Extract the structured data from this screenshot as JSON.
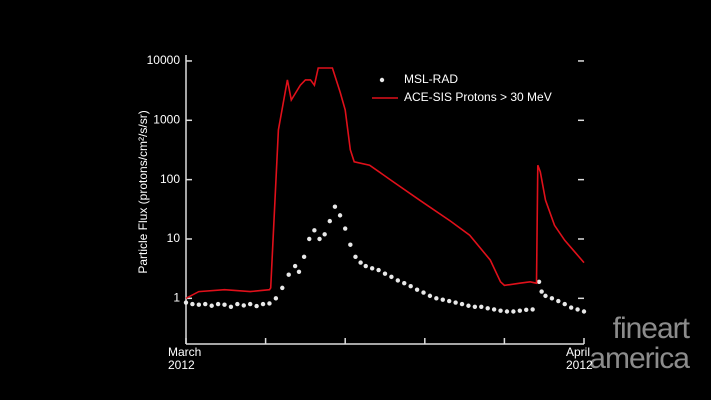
{
  "chart_data": {
    "type": "line",
    "y_label": "Particle Flux (protons/cm²/s/sr)",
    "log_y": true,
    "ylim": [
      0.17,
      12600
    ],
    "yticks": [
      1,
      10,
      100,
      1000,
      10000
    ],
    "xlim": [
      0,
      31
    ],
    "xticks": [
      {
        "value": 0,
        "label": "March\n2012"
      },
      {
        "value": 31,
        "label": "April\n2012"
      }
    ],
    "x_minor_ticks": [
      6.2,
      12.4,
      18.6,
      24.8
    ],
    "legend": "top-right",
    "series": [
      {
        "name": "MSL-RAD",
        "color": "#e8e8e8",
        "marker": "dot",
        "x": [
          0,
          0.5,
          1,
          1.5,
          2,
          2.5,
          3,
          3.5,
          4,
          4.5,
          5,
          5.5,
          6,
          6.5,
          7,
          7.5,
          8,
          8.5,
          8.8,
          9.2,
          9.6,
          10,
          10.4,
          10.8,
          11.2,
          11.6,
          12,
          12.4,
          12.8,
          13.2,
          13.6,
          14,
          14.5,
          15,
          15.5,
          16,
          16.5,
          17,
          17.5,
          18,
          18.5,
          19,
          19.5,
          20,
          20.5,
          21,
          21.5,
          22,
          22.5,
          23,
          23.5,
          24,
          24.5,
          25,
          25.5,
          26,
          26.5,
          27,
          27.5,
          27.7,
          28,
          28.5,
          29,
          29.5,
          30,
          30.5,
          31
        ],
        "values": [
          0.85,
          0.8,
          0.78,
          0.8,
          0.75,
          0.8,
          0.78,
          0.72,
          0.8,
          0.76,
          0.8,
          0.74,
          0.8,
          0.82,
          1.0,
          1.5,
          2.5,
          3.5,
          2.8,
          5,
          10,
          14,
          10,
          12,
          20,
          35,
          25,
          15,
          8,
          5,
          4,
          3.5,
          3.2,
          3,
          2.6,
          2.3,
          2.0,
          1.8,
          1.6,
          1.4,
          1.25,
          1.1,
          1.0,
          0.95,
          0.9,
          0.85,
          0.8,
          0.75,
          0.72,
          0.72,
          0.68,
          0.65,
          0.62,
          0.6,
          0.6,
          0.62,
          0.64,
          0.65,
          1.9,
          1.3,
          1.1,
          1.0,
          0.9,
          0.8,
          0.7,
          0.65,
          0.6
        ]
      },
      {
        "name": "ACE-SIS Protons > 30 MeV",
        "color": "#e0101a",
        "marker": "line",
        "x": [
          0,
          1,
          3,
          5,
          6.5,
          6.6,
          7.2,
          7.9,
          8.2,
          8.9,
          9.3,
          9.7,
          10.0,
          10.3,
          11.4,
          11.7,
          12.0,
          12.4,
          12.8,
          13.1,
          14.3,
          15.9,
          18.2,
          20.6,
          22.1,
          23.7,
          24.5,
          24.8,
          26.0,
          26.8,
          27.3,
          27.4,
          27.6,
          28.0,
          28.7,
          29.5,
          30.3,
          31
        ],
        "values": [
          1.0,
          1.3,
          1.4,
          1.3,
          1.4,
          1.5,
          690,
          4800,
          2200,
          3900,
          4800,
          4800,
          3900,
          7600,
          7600,
          4800,
          3000,
          1500,
          320,
          200,
          175,
          100,
          45,
          20,
          11.6,
          4.4,
          1.9,
          1.65,
          1.8,
          1.9,
          1.8,
          175,
          135,
          45,
          17,
          9.5,
          6,
          4
        ]
      }
    ]
  },
  "watermark": [
    "fineart",
    "america"
  ]
}
